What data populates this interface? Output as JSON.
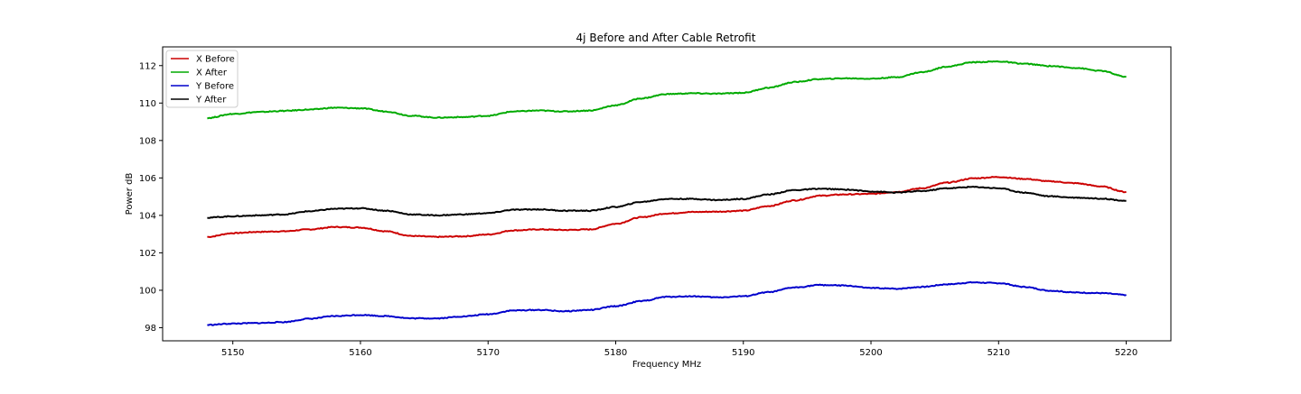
{
  "chart_data": {
    "type": "line",
    "title": "4j Before and After Cable Retrofit",
    "xlabel": "Frequency MHz",
    "ylabel": "Power dB",
    "xlim": [
      5144.5,
      5223.5
    ],
    "ylim": [
      97.3,
      113.0
    ],
    "xticks": [
      5150,
      5160,
      5170,
      5180,
      5190,
      5200,
      5210,
      5220
    ],
    "yticks": [
      98,
      100,
      102,
      104,
      106,
      108,
      110,
      112
    ],
    "grid": false,
    "legend_position": "top-left",
    "series": [
      {
        "name": "X Before",
        "color": "#cc0000",
        "points": [
          [
            5148,
            102.85
          ],
          [
            5150,
            103.05
          ],
          [
            5152,
            103.12
          ],
          [
            5154,
            103.15
          ],
          [
            5156,
            103.25
          ],
          [
            5158,
            103.38
          ],
          [
            5160,
            103.35
          ],
          [
            5162,
            103.15
          ],
          [
            5164,
            102.9
          ],
          [
            5166,
            102.85
          ],
          [
            5168,
            102.88
          ],
          [
            5170,
            102.98
          ],
          [
            5172,
            103.2
          ],
          [
            5174,
            103.25
          ],
          [
            5176,
            103.22
          ],
          [
            5178,
            103.25
          ],
          [
            5180,
            103.55
          ],
          [
            5182,
            103.9
          ],
          [
            5184,
            104.1
          ],
          [
            5186,
            104.18
          ],
          [
            5188,
            104.2
          ],
          [
            5190,
            104.25
          ],
          [
            5192,
            104.5
          ],
          [
            5194,
            104.8
          ],
          [
            5196,
            105.05
          ],
          [
            5198,
            105.12
          ],
          [
            5200,
            105.15
          ],
          [
            5202,
            105.25
          ],
          [
            5204,
            105.45
          ],
          [
            5206,
            105.75
          ],
          [
            5208,
            105.98
          ],
          [
            5210,
            106.05
          ],
          [
            5212,
            105.95
          ],
          [
            5214,
            105.82
          ],
          [
            5216,
            105.72
          ],
          [
            5218,
            105.55
          ],
          [
            5220,
            105.25
          ]
        ]
      },
      {
        "name": "X After",
        "color": "#00aa00",
        "points": [
          [
            5148,
            109.2
          ],
          [
            5150,
            109.42
          ],
          [
            5152,
            109.52
          ],
          [
            5154,
            109.58
          ],
          [
            5156,
            109.65
          ],
          [
            5158,
            109.75
          ],
          [
            5160,
            109.72
          ],
          [
            5162,
            109.55
          ],
          [
            5164,
            109.32
          ],
          [
            5166,
            109.22
          ],
          [
            5168,
            109.25
          ],
          [
            5170,
            109.32
          ],
          [
            5172,
            109.55
          ],
          [
            5174,
            109.6
          ],
          [
            5176,
            109.55
          ],
          [
            5178,
            109.6
          ],
          [
            5180,
            109.88
          ],
          [
            5182,
            110.25
          ],
          [
            5184,
            110.48
          ],
          [
            5186,
            110.52
          ],
          [
            5188,
            110.5
          ],
          [
            5190,
            110.55
          ],
          [
            5192,
            110.82
          ],
          [
            5194,
            111.12
          ],
          [
            5196,
            111.28
          ],
          [
            5198,
            111.32
          ],
          [
            5200,
            111.3
          ],
          [
            5202,
            111.38
          ],
          [
            5204,
            111.65
          ],
          [
            5206,
            111.95
          ],
          [
            5208,
            112.18
          ],
          [
            5210,
            112.22
          ],
          [
            5212,
            112.1
          ],
          [
            5214,
            111.98
          ],
          [
            5216,
            111.88
          ],
          [
            5218,
            111.72
          ],
          [
            5220,
            111.4
          ]
        ]
      },
      {
        "name": "Y Before",
        "color": "#0000cc",
        "points": [
          [
            5148,
            98.15
          ],
          [
            5150,
            98.22
          ],
          [
            5152,
            98.25
          ],
          [
            5154,
            98.3
          ],
          [
            5156,
            98.48
          ],
          [
            5158,
            98.62
          ],
          [
            5160,
            98.68
          ],
          [
            5162,
            98.62
          ],
          [
            5164,
            98.5
          ],
          [
            5166,
            98.5
          ],
          [
            5168,
            98.6
          ],
          [
            5170,
            98.72
          ],
          [
            5172,
            98.92
          ],
          [
            5174,
            98.95
          ],
          [
            5176,
            98.88
          ],
          [
            5178,
            98.95
          ],
          [
            5180,
            99.15
          ],
          [
            5182,
            99.42
          ],
          [
            5184,
            99.65
          ],
          [
            5186,
            99.68
          ],
          [
            5188,
            99.62
          ],
          [
            5190,
            99.68
          ],
          [
            5192,
            99.9
          ],
          [
            5194,
            100.15
          ],
          [
            5196,
            100.28
          ],
          [
            5198,
            100.25
          ],
          [
            5200,
            100.12
          ],
          [
            5202,
            100.08
          ],
          [
            5204,
            100.18
          ],
          [
            5206,
            100.32
          ],
          [
            5208,
            100.42
          ],
          [
            5210,
            100.38
          ],
          [
            5212,
            100.18
          ],
          [
            5214,
            99.98
          ],
          [
            5216,
            99.88
          ],
          [
            5218,
            99.85
          ],
          [
            5220,
            99.75
          ]
        ]
      },
      {
        "name": "Y After",
        "color": "#000000",
        "points": [
          [
            5148,
            103.88
          ],
          [
            5150,
            103.95
          ],
          [
            5152,
            104.0
          ],
          [
            5154,
            104.05
          ],
          [
            5156,
            104.22
          ],
          [
            5158,
            104.35
          ],
          [
            5160,
            104.38
          ],
          [
            5162,
            104.25
          ],
          [
            5164,
            104.05
          ],
          [
            5166,
            104.0
          ],
          [
            5168,
            104.05
          ],
          [
            5170,
            104.12
          ],
          [
            5172,
            104.3
          ],
          [
            5174,
            104.32
          ],
          [
            5176,
            104.25
          ],
          [
            5178,
            104.25
          ],
          [
            5180,
            104.45
          ],
          [
            5182,
            104.72
          ],
          [
            5184,
            104.88
          ],
          [
            5186,
            104.88
          ],
          [
            5188,
            104.82
          ],
          [
            5190,
            104.88
          ],
          [
            5192,
            105.12
          ],
          [
            5194,
            105.35
          ],
          [
            5196,
            105.42
          ],
          [
            5198,
            105.38
          ],
          [
            5200,
            105.28
          ],
          [
            5202,
            105.22
          ],
          [
            5204,
            105.3
          ],
          [
            5206,
            105.45
          ],
          [
            5208,
            105.52
          ],
          [
            5210,
            105.45
          ],
          [
            5212,
            105.22
          ],
          [
            5214,
            105.02
          ],
          [
            5216,
            104.95
          ],
          [
            5218,
            104.9
          ],
          [
            5220,
            104.78
          ]
        ]
      }
    ]
  }
}
